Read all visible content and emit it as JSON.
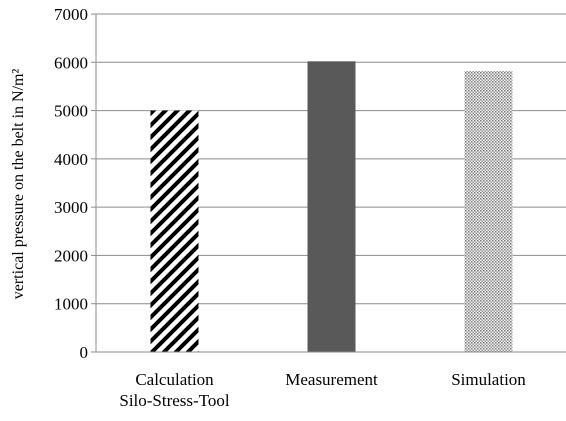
{
  "chart_data": {
    "type": "bar",
    "title": "",
    "xlabel": "",
    "ylabel": "vertical pressure on the belt in N/m²",
    "ylim": [
      0,
      7000
    ],
    "yticks": [
      0,
      1000,
      2000,
      3000,
      4000,
      5000,
      6000,
      7000
    ],
    "grid": true,
    "legend": "none",
    "categories": [
      [
        "Calculation",
        "Silo-Stress-Tool"
      ],
      [
        "Measurement"
      ],
      [
        "Simulation"
      ]
    ],
    "values": [
      5000,
      6020,
      5820
    ],
    "styles": [
      "diagonal-stripes",
      "solid-dark-gray",
      "dotted"
    ]
  },
  "colors": {
    "solid_bar": "#595959",
    "stripe": "#000000",
    "dots": "#7f7f7f",
    "grid": "#8c8c8c",
    "axis": "#8c8c8c"
  }
}
